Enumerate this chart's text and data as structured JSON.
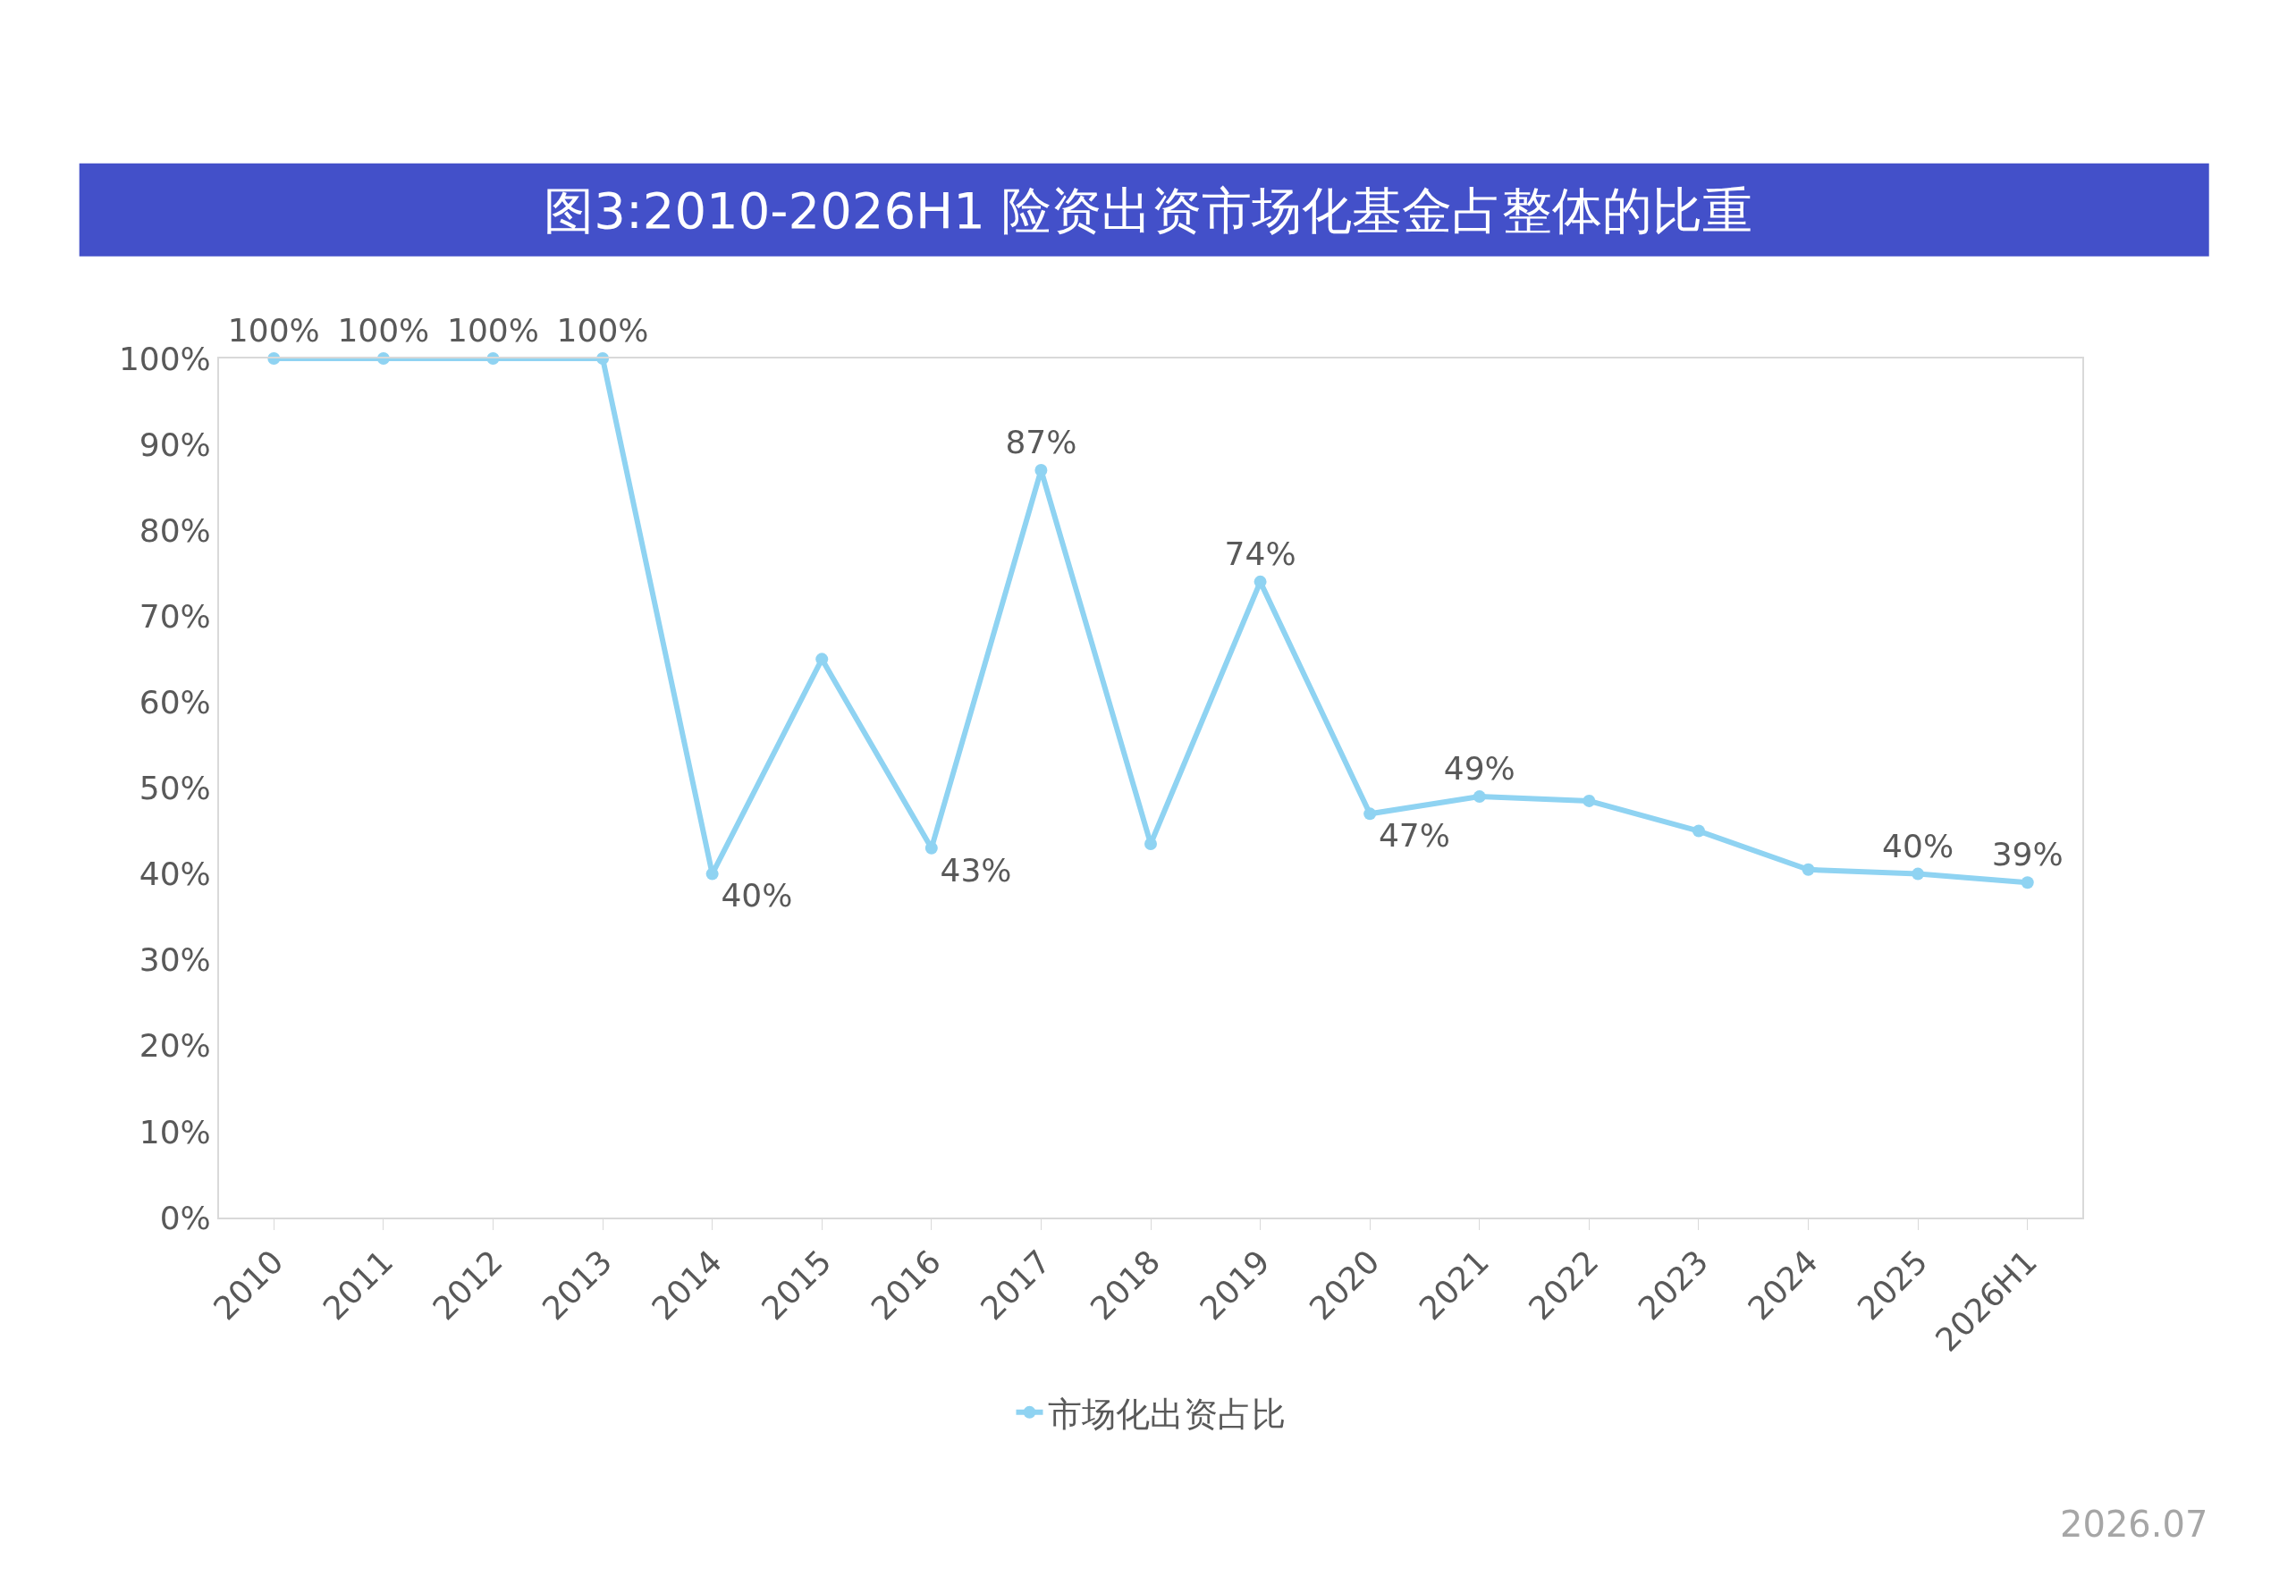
{
  "chart_data": {
    "type": "line",
    "title": "图3:2010-2026H1 险资出资市场化基金占整体的比重",
    "categories": [
      "2010",
      "2011",
      "2012",
      "2013",
      "2014",
      "2015",
      "2016",
      "2017",
      "2018",
      "2019",
      "2020",
      "2021",
      "2022",
      "2023",
      "2024",
      "2025",
      "2026H1"
    ],
    "series": [
      {
        "name": "市场化出资占比",
        "color": "#8fd3f2",
        "values": [
          100,
          100,
          100,
          100,
          40,
          65,
          43,
          87,
          43.5,
          74,
          47,
          49,
          48.5,
          45,
          40.5,
          40,
          39
        ],
        "value_labels": [
          "100%",
          "100%",
          "100%",
          "100%",
          "40%",
          null,
          "43%",
          "87%",
          null,
          "74%",
          "47%",
          "49%",
          null,
          null,
          null,
          "40%",
          "39%"
        ]
      }
    ],
    "ylim": [
      0,
      100
    ],
    "yticks": [
      {
        "value": 0,
        "label": "0%"
      },
      {
        "value": 10,
        "label": "10%"
      },
      {
        "value": 20,
        "label": "20%"
      },
      {
        "value": 30,
        "label": "30%"
      },
      {
        "value": 40,
        "label": "40%"
      },
      {
        "value": 50,
        "label": "50%"
      },
      {
        "value": 60,
        "label": "60%"
      },
      {
        "value": 70,
        "label": "70%"
      },
      {
        "value": 80,
        "label": "80%"
      },
      {
        "value": 90,
        "label": "90%"
      },
      {
        "value": 100,
        "label": "100%"
      }
    ],
    "legend": "bottom",
    "marker": "circle",
    "line_style": "solid",
    "annotations": [
      "2026.07"
    ]
  }
}
